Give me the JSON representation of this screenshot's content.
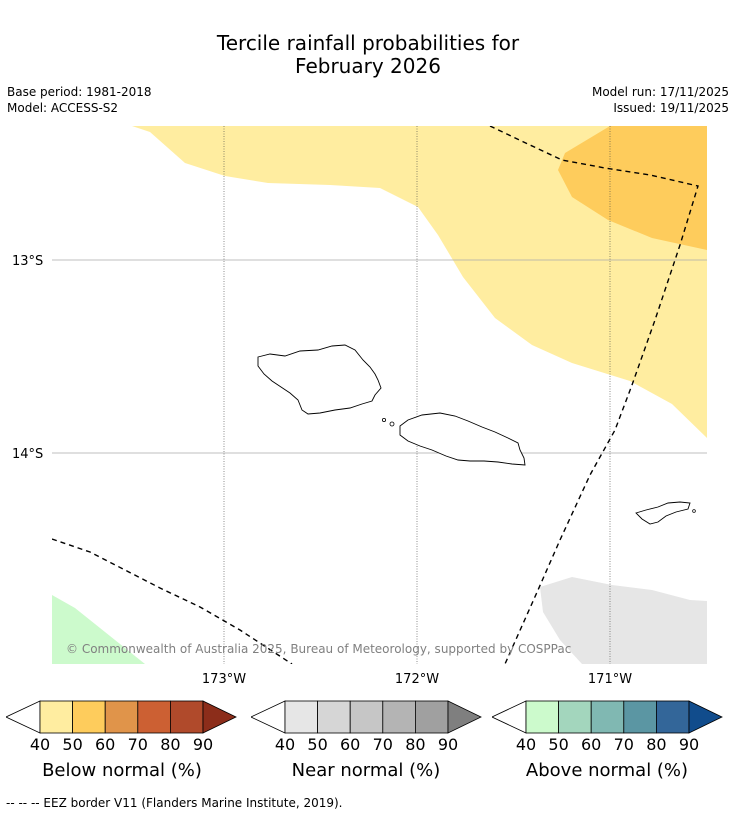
{
  "title": {
    "line1": "Tercile rainfall probabilities for",
    "line2": "February 2026"
  },
  "meta": {
    "base_period": "Base period: 1981-2018",
    "model": "Model: ACCESS-S2",
    "model_run": "Model run: 17/11/2025",
    "issued": "Issued: 19/11/2025"
  },
  "map": {
    "lat_labels": [
      "13°S",
      "14°S"
    ],
    "lon_labels": [
      "173°W",
      "172°W",
      "171°W"
    ],
    "copyright": "© Commonwealth of Australia 2025, Bureau of Meteorology, supported by COSPPac"
  },
  "colorbars": [
    {
      "label": "Below normal (%)",
      "ticks": [
        "40",
        "50",
        "60",
        "70",
        "80",
        "90"
      ],
      "colors": [
        "#ffeda0",
        "#fecc5c",
        "#e0944a",
        "#cc6033",
        "#b04a2b",
        "#8c2d1a"
      ]
    },
    {
      "label": "Near normal (%)",
      "ticks": [
        "40",
        "50",
        "60",
        "70",
        "80",
        "90"
      ],
      "colors": [
        "#e6e6e6",
        "#d6d6d6",
        "#c6c6c6",
        "#b4b4b4",
        "#a0a0a0",
        "#7f7f7f"
      ]
    },
    {
      "label": "Above normal (%)",
      "ticks": [
        "40",
        "50",
        "60",
        "70",
        "80",
        "90"
      ],
      "colors": [
        "#ccfacc",
        "#a3d6bd",
        "#80b8b2",
        "#5b96a3",
        "#336699",
        "#114c8c"
      ]
    }
  ],
  "footer": "--  --  -- EEZ border V11 (Flanders Marine Institute, 2019)."
}
